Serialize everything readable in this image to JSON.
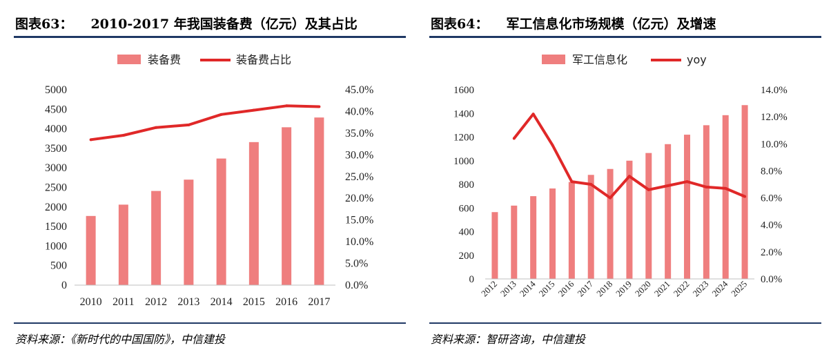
{
  "colors": {
    "bar": "#ef7e7e",
    "line": "#e02828",
    "rule": "#1f3864"
  },
  "chart_data": [
    {
      "type": "bar",
      "figure_label": "图表63：",
      "title": "2010-2017 年我国装备费（亿元）及其占比",
      "categories": [
        "2010",
        "2011",
        "2012",
        "2013",
        "2014",
        "2015",
        "2016",
        "2017"
      ],
      "series": [
        {
          "name": "装备费",
          "kind": "bar",
          "axis": "left",
          "values": [
            1770,
            2060,
            2410,
            2700,
            3240,
            3660,
            4040,
            4290
          ]
        },
        {
          "name": "装备费占比",
          "kind": "line",
          "axis": "right",
          "values": [
            33.5,
            34.5,
            36.3,
            36.9,
            39.3,
            40.3,
            41.3,
            41.1
          ]
        }
      ],
      "ylim_left": [
        0,
        5000
      ],
      "ylim_right": [
        0,
        45
      ],
      "left_ticks": [
        "5000",
        "4500",
        "4000",
        "3500",
        "3000",
        "2500",
        "2000",
        "1500",
        "1000",
        "500",
        "0"
      ],
      "right_ticks": [
        "45.0%",
        "40.0%",
        "35.0%",
        "30.0%",
        "25.0%",
        "20.0%",
        "15.0%",
        "10.0%",
        "5.0%",
        "0.0%"
      ],
      "legend": [
        "装备费",
        "装备费占比"
      ],
      "source": "资料来源：《新时代的中国国防》，中信建投"
    },
    {
      "type": "bar",
      "figure_label": "图表64：",
      "title": "军工信息化市场规模（亿元）及增速",
      "categories": [
        "2012",
        "2013",
        "2014",
        "2015",
        "2016",
        "2017",
        "2018",
        "2019",
        "2020",
        "2021",
        "2022",
        "2023",
        "2024",
        "2025"
      ],
      "series": [
        {
          "name": "军工信息化",
          "kind": "bar",
          "axis": "left",
          "values": [
            565,
            620,
            700,
            765,
            820,
            880,
            930,
            1000,
            1065,
            1140,
            1220,
            1300,
            1385,
            1470
          ]
        },
        {
          "name": "yoy",
          "kind": "line",
          "axis": "right",
          "values": [
            null,
            10.4,
            12.2,
            9.9,
            7.2,
            7.0,
            6.0,
            7.6,
            6.6,
            6.9,
            7.2,
            6.8,
            6.7,
            6.1
          ]
        }
      ],
      "ylim_left": [
        0,
        1600
      ],
      "ylim_right": [
        0,
        14
      ],
      "left_ticks": [
        "1600",
        "1400",
        "1200",
        "1000",
        "800",
        "600",
        "400",
        "200",
        "0"
      ],
      "right_ticks": [
        "14.0%",
        "12.0%",
        "10.0%",
        "8.0%",
        "6.0%",
        "4.0%",
        "2.0%",
        "0.0%"
      ],
      "legend": [
        "军工信息化",
        "yoy"
      ],
      "source": "资料来源：智研咨询，中信建投"
    }
  ]
}
